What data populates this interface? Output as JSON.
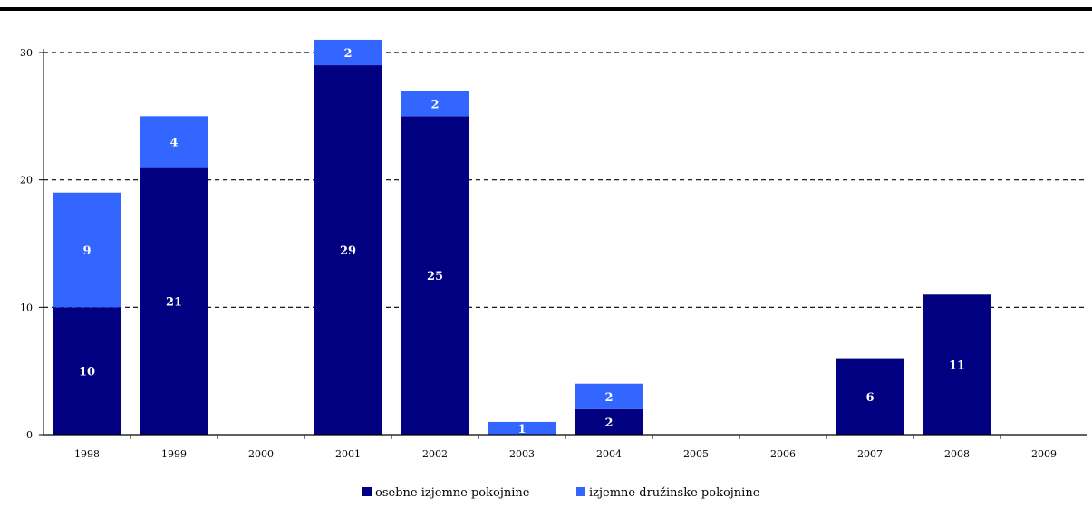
{
  "chart_data": {
    "type": "bar",
    "stacked": true,
    "title": "",
    "xlabel": "",
    "ylabel": "",
    "categories": [
      "1998",
      "1999",
      "2000",
      "2001",
      "2002",
      "2003",
      "2004",
      "2005",
      "2006",
      "2007",
      "2008",
      "2009"
    ],
    "series": [
      {
        "name": "osebne izjemne pokojnine",
        "color": "#000080",
        "values": [
          10,
          21,
          0,
          29,
          25,
          0,
          2,
          0,
          0,
          6,
          11,
          0
        ]
      },
      {
        "name": "izjemne družinske pokojnine",
        "color": "#3366ff",
        "values": [
          9,
          4,
          0,
          2,
          2,
          1,
          2,
          0,
          0,
          0,
          0,
          0
        ]
      }
    ],
    "ylim": [
      0,
      30
    ],
    "yticks": [
      0,
      10,
      20,
      30
    ],
    "grid": "dashed horizontal",
    "legend": "bottom-center"
  }
}
